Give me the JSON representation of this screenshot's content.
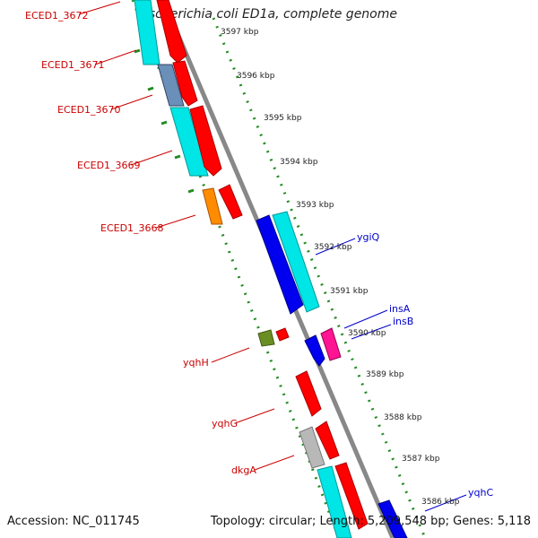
{
  "title": "Escherichia coli ED1a, complete genome",
  "footer": {
    "accession": "Accession: NC_011745",
    "topology": "Topology: circular; Length: 5,209,548 bp; Genes: 5,118"
  },
  "colors": {
    "background": "#ffffff",
    "backbone": "#888888",
    "tick": "#228b22",
    "label_left": "#cc0000",
    "label_right": "#0000cc",
    "scale_text": "#222222"
  },
  "scale_ticks": [
    "3597 kbp",
    "3596 kbp",
    "3595 kbp",
    "3594 kbp",
    "3593 kbp",
    "3592 kbp",
    "3591 kbp",
    "3590 kbp",
    "3589 kbp",
    "3588 kbp",
    "3587 kbp",
    "3586 kbp"
  ],
  "gene_labels_left": [
    "ECED1_3672",
    "ECED1_3671",
    "ECED1_3670",
    "ECED1_3669",
    "ECED1_3668",
    "yqhH",
    "yqhG",
    "dkgA"
  ],
  "gene_labels_right": [
    "ygiQ",
    "insA",
    "insB",
    "yqhC"
  ],
  "feature_colors": {
    "red": "#ff0000",
    "cyan": "#00e5e5",
    "blue": "#0000ee",
    "orange": "#ff8c00",
    "olive": "#6b8e23",
    "magenta": "#ff1493",
    "grey": "#b8b8b8",
    "steel": "#6a8fb8"
  }
}
